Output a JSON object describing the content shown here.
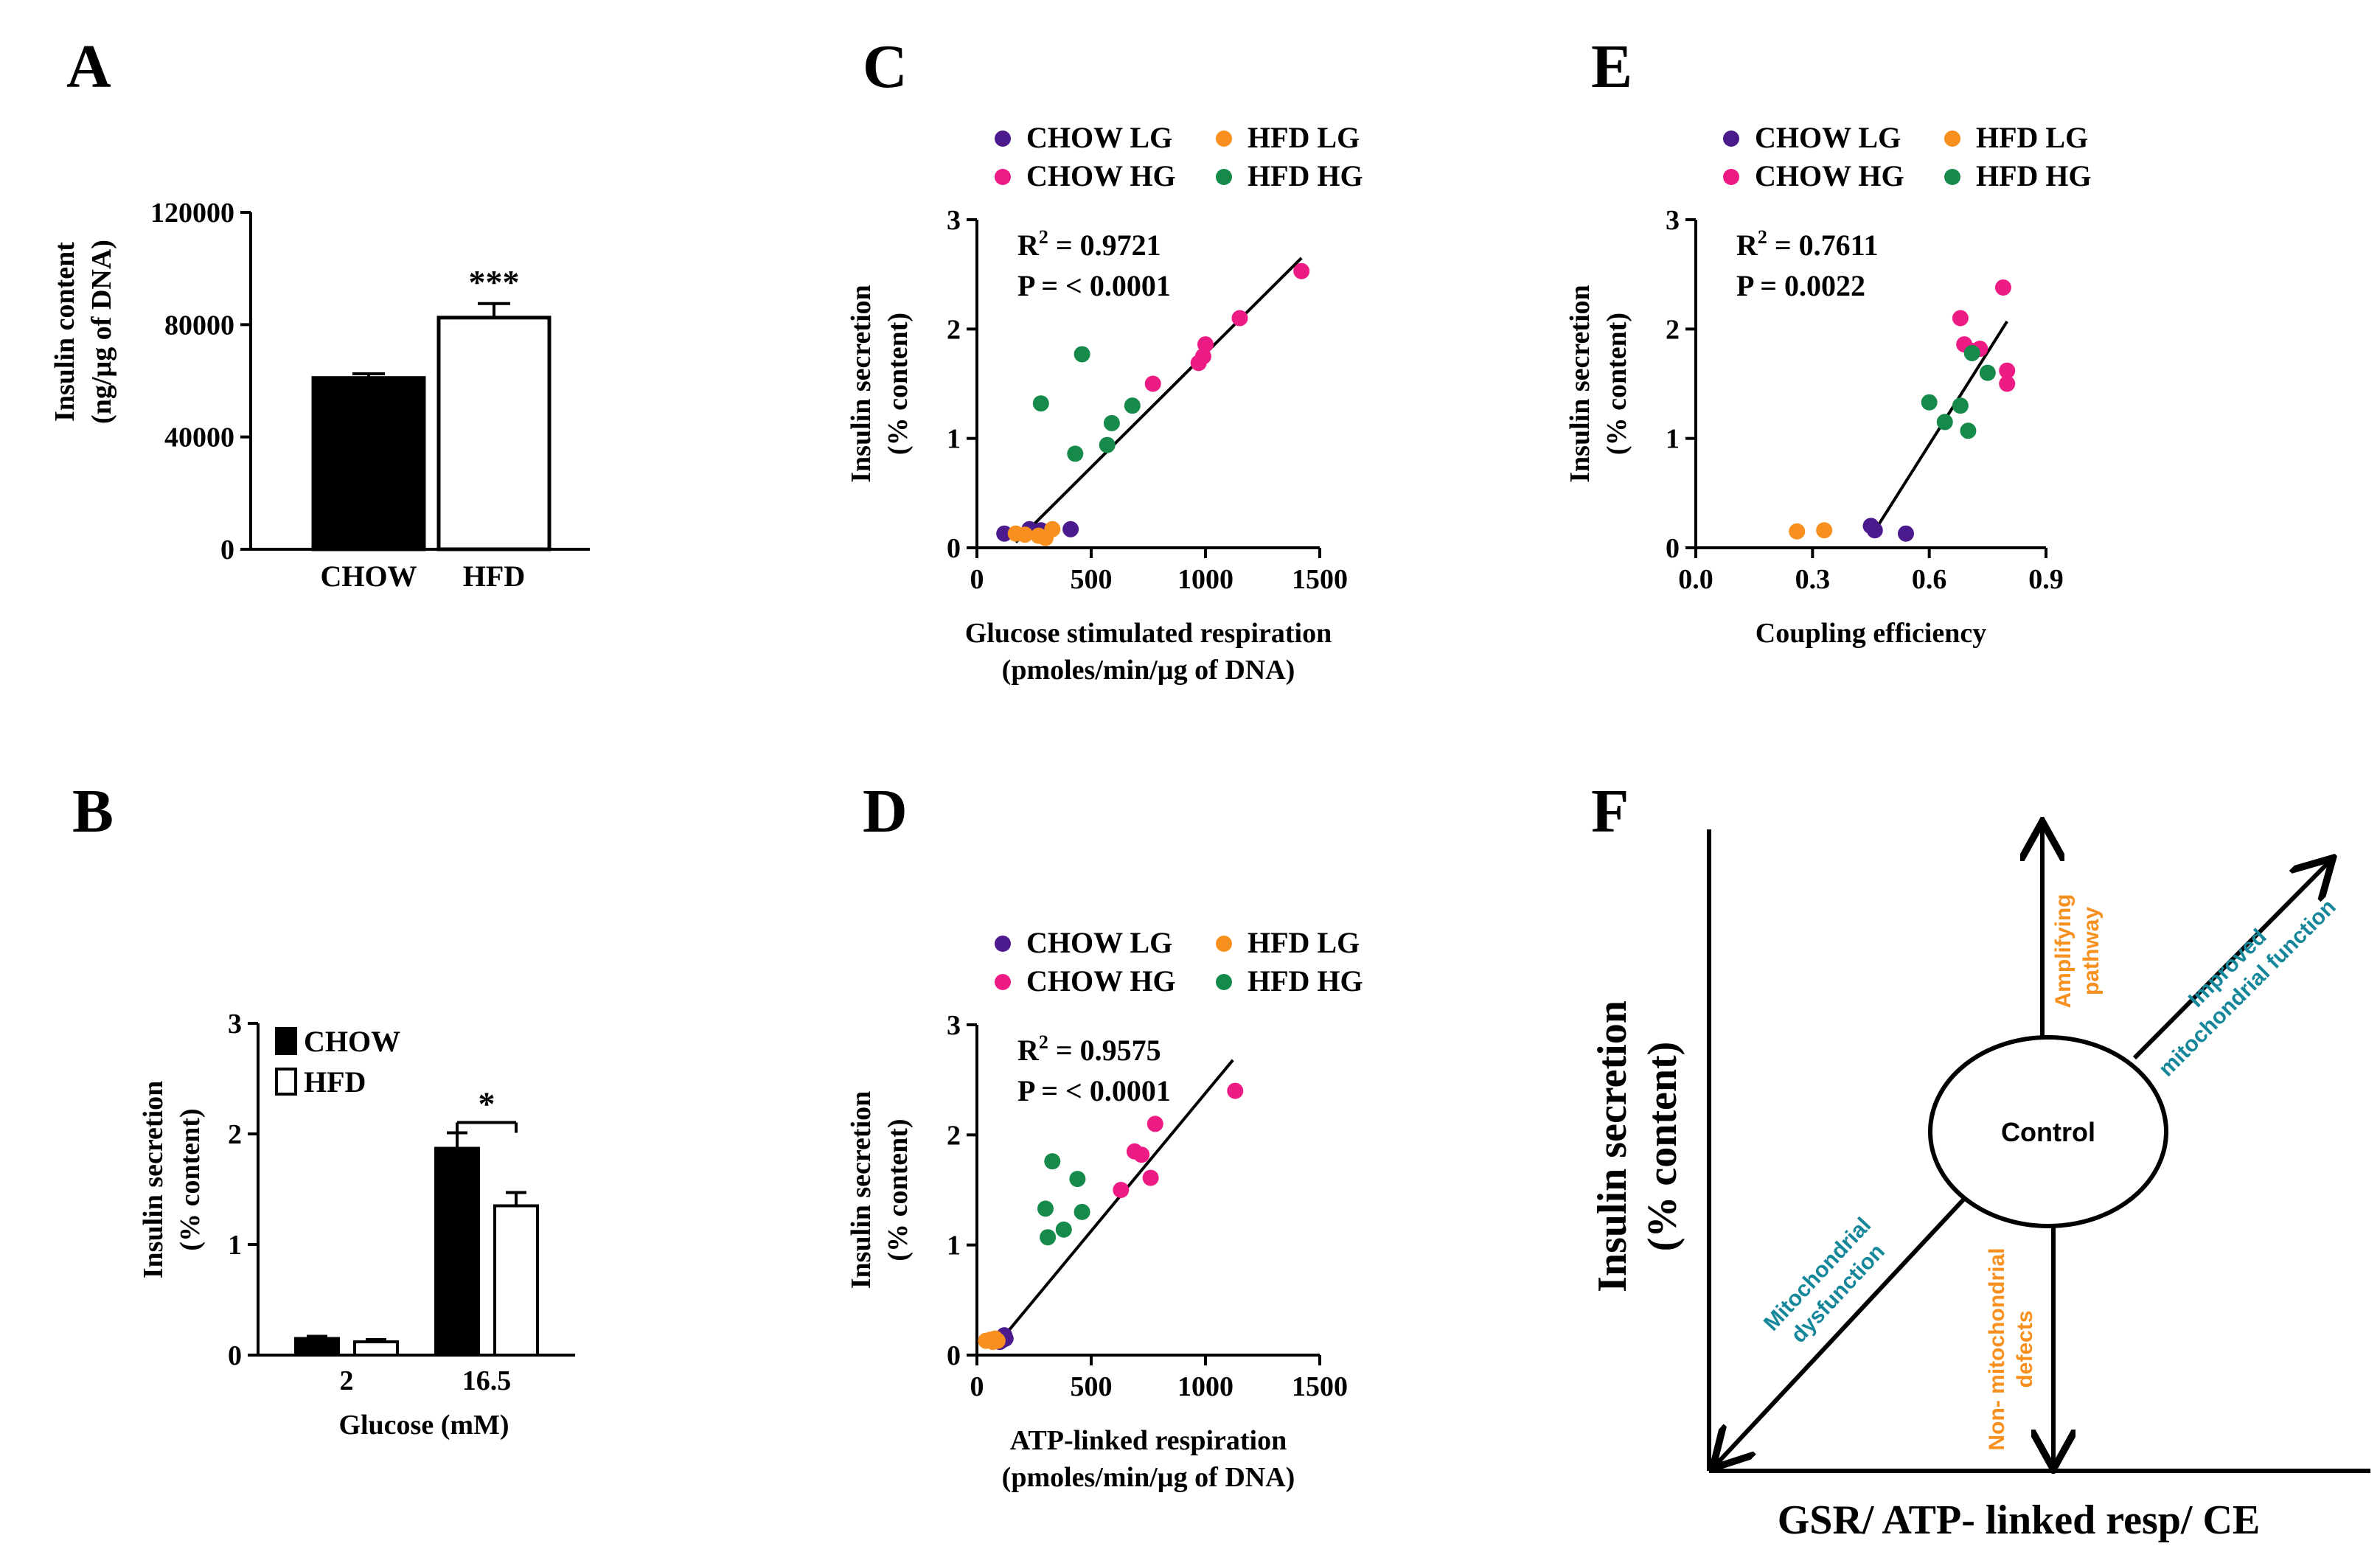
{
  "panel_letters": [
    "A",
    "B",
    "C",
    "D",
    "E",
    "F"
  ],
  "colors": {
    "chow_lg": "#4b1a8c",
    "hfd_lg": "#f7901e",
    "chow_hg": "#ed1c84",
    "hfd_hg": "#168a4a",
    "f_teal": "#16879a",
    "f_orange": "#f7901e"
  },
  "chart_data": [
    {
      "id": "A",
      "type": "bar",
      "title": "",
      "ylabel_lines": [
        "Insulin content",
        "(ng/µg of DNA)"
      ],
      "categories": [
        "CHOW",
        "HFD"
      ],
      "values": [
        61000,
        82500
      ],
      "errors": [
        1500,
        5000
      ],
      "fills": [
        "black",
        "white"
      ],
      "ylim": [
        0,
        120000
      ],
      "yticks": [
        0,
        40000,
        80000,
        120000
      ],
      "annotation": "***"
    },
    {
      "id": "B",
      "type": "bar",
      "title": "",
      "xlabel": "Glucose (mM)",
      "ylabel_lines": [
        "Insulin secretion",
        "(% content)"
      ],
      "categories": [
        "2",
        "16.5"
      ],
      "series": [
        {
          "name": "CHOW",
          "fill": "black",
          "values": [
            0.15,
            1.87
          ],
          "errors": [
            0.02,
            0.14
          ]
        },
        {
          "name": "HFD",
          "fill": "white",
          "values": [
            0.12,
            1.35
          ],
          "errors": [
            0.02,
            0.12
          ]
        }
      ],
      "ylim": [
        0,
        3
      ],
      "yticks": [
        0,
        1,
        2,
        3
      ],
      "annotation": "*",
      "legend": "top-left"
    },
    {
      "id": "C",
      "type": "scatter",
      "xlabel_lines": [
        "Glucose stimulated respiration",
        "(pmoles/min/µg of DNA)"
      ],
      "ylabel_lines": [
        "Insulin secretion",
        "(% content)"
      ],
      "xlim": [
        0,
        1500
      ],
      "xticks": [
        0,
        500,
        1000,
        1500
      ],
      "ylim": [
        0,
        3
      ],
      "yticks": [
        0,
        1,
        2,
        3
      ],
      "stats": {
        "r2_label": "R",
        "r2_sup": "2",
        "r2_value": " = 0.9721",
        "p_text": "P =  < 0.0001"
      },
      "fit": {
        "x": [
          170,
          1420
        ],
        "y": [
          0.05,
          2.65
        ]
      },
      "series": [
        {
          "name": "CHOW LG",
          "color": "chow_lg",
          "x": [
            120,
            230,
            260,
            280,
            410
          ],
          "y": [
            0.13,
            0.17,
            0.14,
            0.16,
            0.17
          ]
        },
        {
          "name": "HFD LG",
          "color": "hfd_lg",
          "x": [
            170,
            210,
            270,
            300,
            330
          ],
          "y": [
            0.13,
            0.12,
            0.11,
            0.09,
            0.17
          ]
        },
        {
          "name": "CHOW HG",
          "color": "chow_hg",
          "x": [
            770,
            970,
            990,
            1000,
            1150,
            1420
          ],
          "y": [
            1.5,
            1.69,
            1.75,
            1.86,
            2.1,
            2.53
          ]
        },
        {
          "name": "HFD HG",
          "color": "hfd_hg",
          "x": [
            280,
            430,
            460,
            570,
            590,
            680
          ],
          "y": [
            1.32,
            0.86,
            1.77,
            0.94,
            1.14,
            1.3
          ]
        }
      ]
    },
    {
      "id": "D",
      "type": "scatter",
      "xlabel_lines": [
        "ATP-linked respiration",
        "(pmoles/min/µg of DNA)"
      ],
      "ylabel_lines": [
        "Insulin secretion",
        "(% content)"
      ],
      "xlim": [
        0,
        1500
      ],
      "xticks": [
        0,
        500,
        1000,
        1500
      ],
      "ylim": [
        0,
        3
      ],
      "yticks": [
        0,
        1,
        2,
        3
      ],
      "stats": {
        "r2_label": "R",
        "r2_sup": "2",
        "r2_value": " = 0.9575",
        "p_text": "P =  < 0.0001"
      },
      "fit": {
        "x": [
          90,
          1120
        ],
        "y": [
          0.1,
          2.68
        ]
      },
      "series": [
        {
          "name": "CHOW LG",
          "color": "chow_lg",
          "x": [
            100,
            110,
            115,
            120,
            125
          ],
          "y": [
            0.12,
            0.16,
            0.14,
            0.18,
            0.15
          ]
        },
        {
          "name": "HFD LG",
          "color": "hfd_lg",
          "x": [
            40,
            60,
            70,
            80,
            90
          ],
          "y": [
            0.13,
            0.14,
            0.12,
            0.15,
            0.13
          ]
        },
        {
          "name": "CHOW HG",
          "color": "chow_hg",
          "x": [
            630,
            690,
            720,
            760,
            780,
            1130
          ],
          "y": [
            1.5,
            1.85,
            1.82,
            1.61,
            2.1,
            2.4
          ]
        },
        {
          "name": "HFD HG",
          "color": "hfd_hg",
          "x": [
            300,
            310,
            330,
            380,
            440,
            460
          ],
          "y": [
            1.33,
            1.07,
            1.76,
            1.14,
            1.6,
            1.3
          ]
        }
      ]
    },
    {
      "id": "E",
      "type": "scatter",
      "xlabel": "Coupling efficiency",
      "ylabel_lines": [
        "Insulin secretion",
        "(% content)"
      ],
      "xlim": [
        0,
        0.9
      ],
      "xticks": [
        0,
        0.3,
        0.6,
        0.9
      ],
      "xtick_labels": [
        "0.0",
        "0.3",
        "0.6",
        "0.9"
      ],
      "ylim": [
        0,
        3
      ],
      "yticks": [
        0,
        1,
        2,
        3
      ],
      "stats": {
        "r2_label": "R",
        "r2_sup": "2",
        "r2_value": " = 0.7611",
        "p_text": "P =  0.0022"
      },
      "fit": {
        "x": [
          0.45,
          0.8
        ],
        "y": [
          0.1,
          2.07
        ]
      },
      "series": [
        {
          "name": "CHOW LG",
          "color": "chow_lg",
          "x": [
            0.45,
            0.46,
            0.54
          ],
          "y": [
            0.2,
            0.16,
            0.13
          ]
        },
        {
          "name": "HFD LG",
          "color": "hfd_lg",
          "x": [
            0.26,
            0.33
          ],
          "y": [
            0.15,
            0.16
          ]
        },
        {
          "name": "CHOW HG",
          "color": "chow_hg",
          "x": [
            0.68,
            0.69,
            0.71,
            0.73,
            0.79,
            0.8,
            0.8
          ],
          "y": [
            2.1,
            1.86,
            1.8,
            1.82,
            2.38,
            1.62,
            1.5
          ]
        },
        {
          "name": "HFD HG",
          "color": "hfd_hg",
          "x": [
            0.6,
            0.64,
            0.68,
            0.7,
            0.71,
            0.75
          ],
          "y": [
            1.33,
            1.15,
            1.3,
            1.07,
            1.78,
            1.6
          ]
        }
      ]
    }
  ],
  "panel_f": {
    "ylabel_lines": [
      "Insulin secretion",
      "(% content)"
    ],
    "xlabel": "GSR/ ATP- linked resp/ CE",
    "center": "Control",
    "up_lines": [
      "Amplifying",
      "pathway"
    ],
    "upright_lines": [
      "Improved",
      "mitochondrial function"
    ],
    "downleft_lines": [
      "Mitochondrial",
      "dysfunction"
    ],
    "down_lines": [
      "Non- mitochondrial",
      "defects"
    ]
  }
}
